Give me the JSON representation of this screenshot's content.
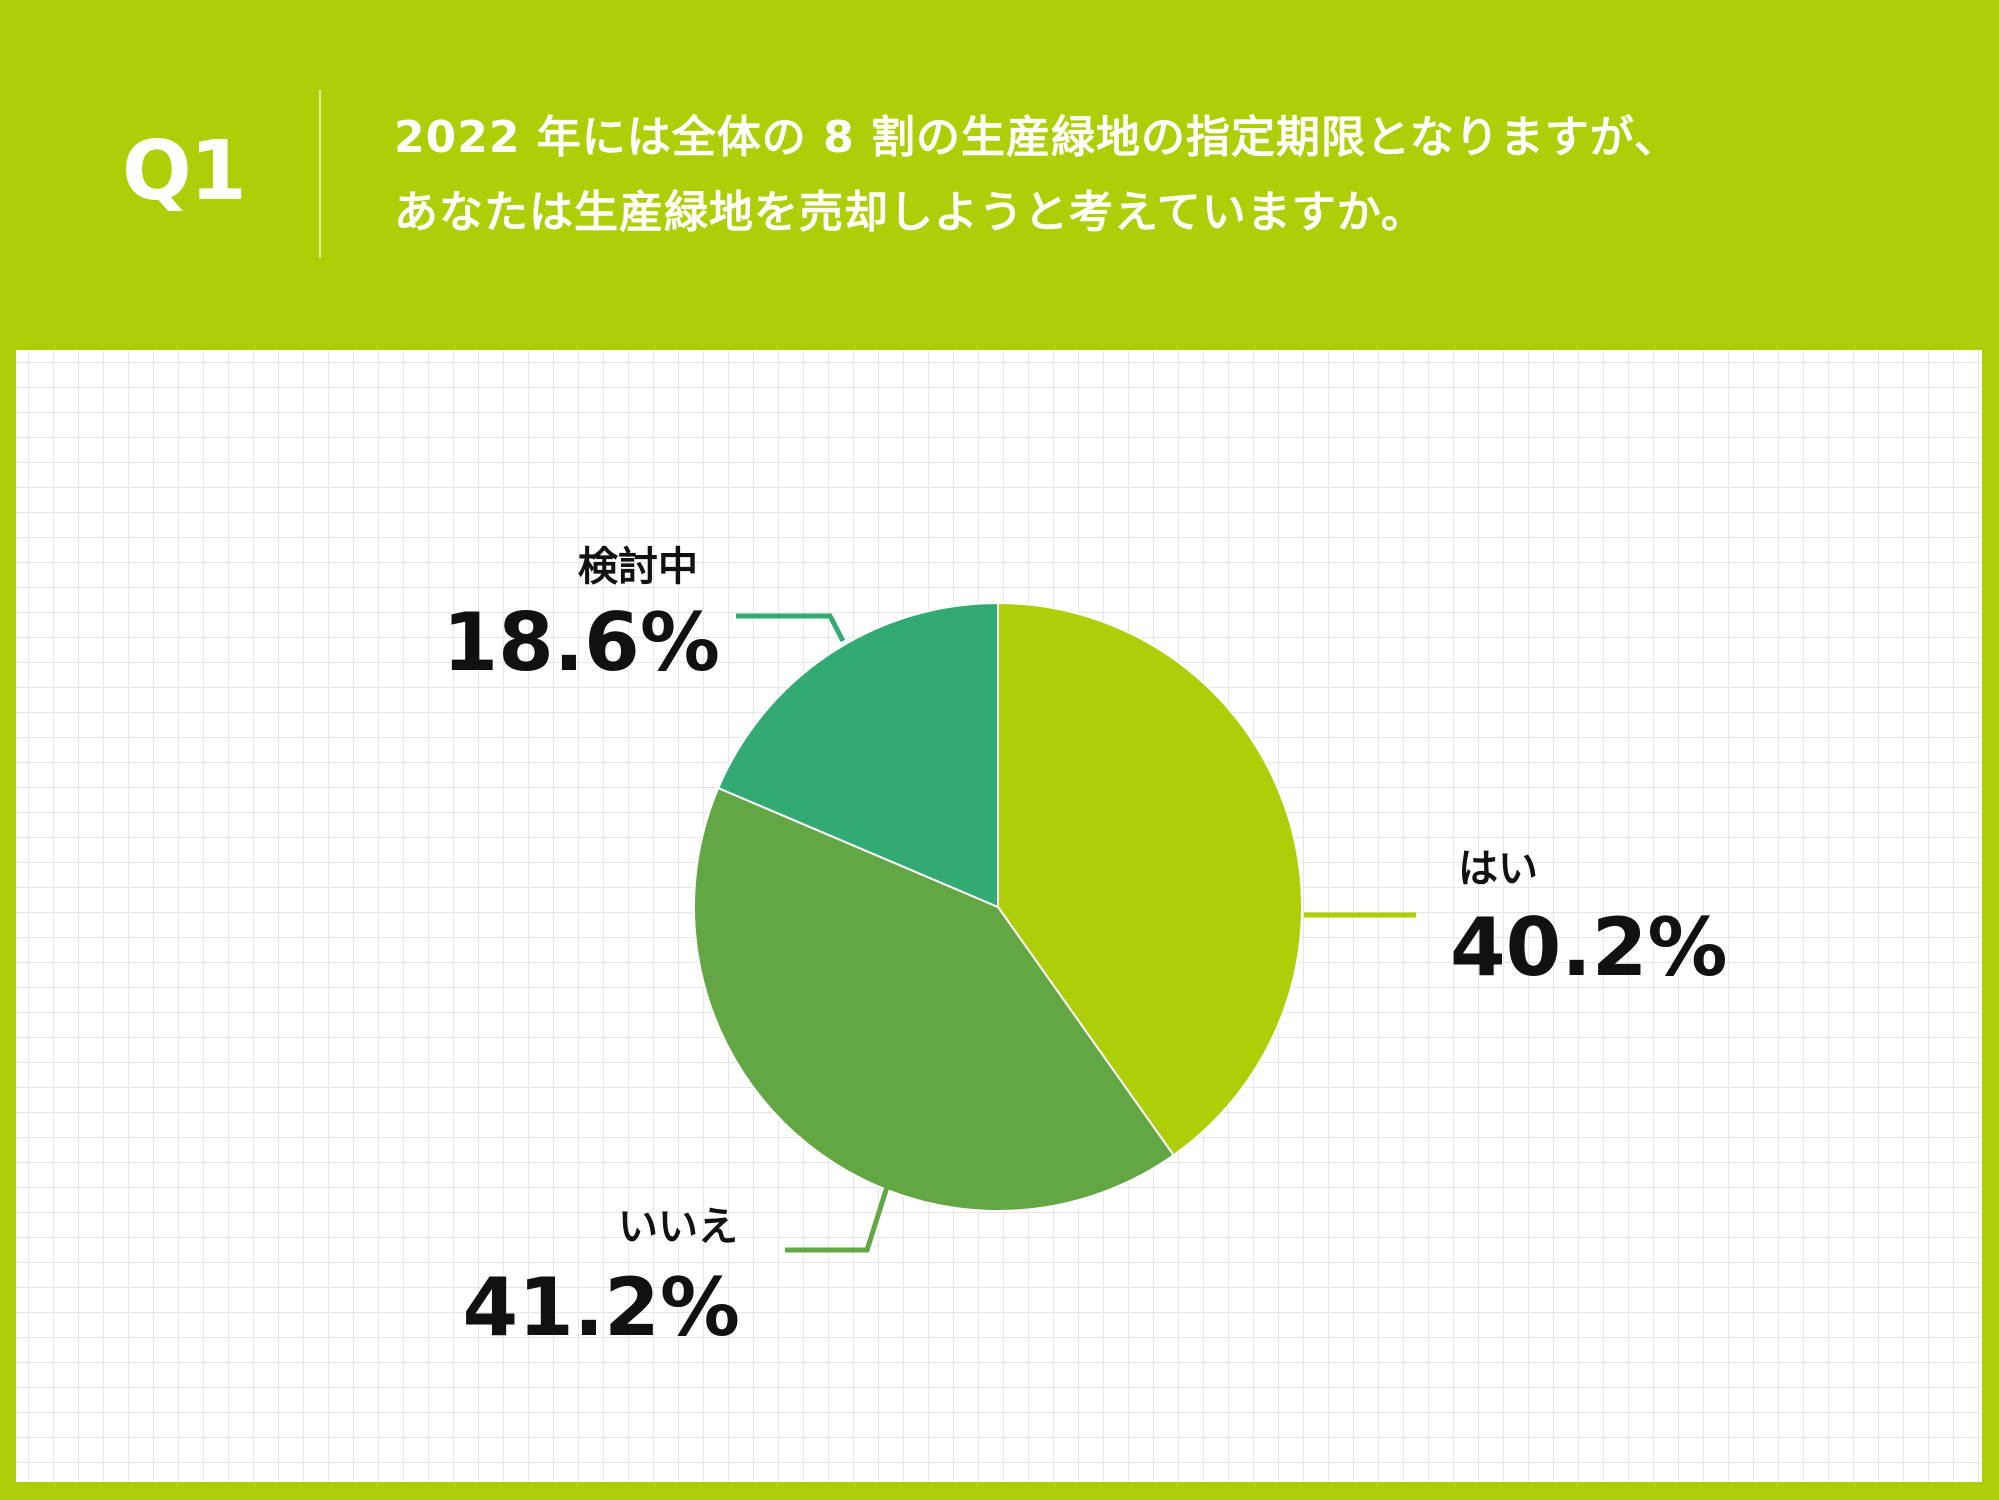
{
  "header": {
    "q_label": "Q1",
    "question_line1": "2022 年には全体の 8 割の生産緑地の指定期限となりますが、",
    "question_line2": "あなたは生産緑地を売却しようと考えていますか。"
  },
  "chart_data": {
    "type": "pie",
    "slices": [
      {
        "label": "はい",
        "value": 40.2,
        "value_label": "40.2%",
        "color": "#aece08"
      },
      {
        "label": "いいえ",
        "value": 41.2,
        "value_label": "41.2%",
        "color": "#62a744"
      },
      {
        "label": "検討中",
        "value": 18.6,
        "value_label": "18.6%",
        "color": "#33aa74"
      }
    ],
    "start_angle": "12 o'clock",
    "direction": "clockwise",
    "grid": true
  },
  "colors": {
    "background": "#aece08",
    "panel": "#ffffff",
    "text": "#111111"
  }
}
